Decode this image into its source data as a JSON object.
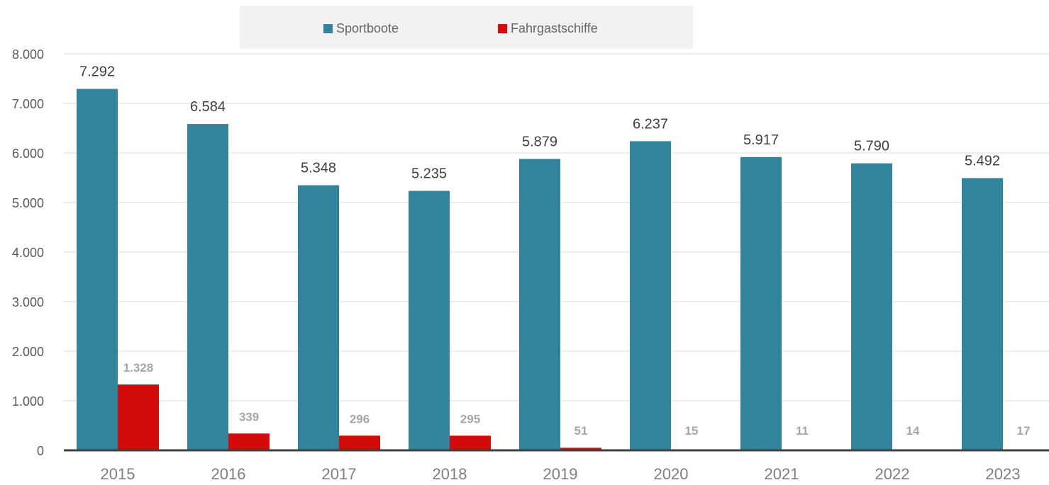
{
  "chart_data": {
    "type": "bar",
    "categories": [
      "2015",
      "2016",
      "2017",
      "2018",
      "2019",
      "2020",
      "2021",
      "2022",
      "2023"
    ],
    "series": [
      {
        "name": "Sportboote",
        "color": "#31849b",
        "values": [
          7292,
          6584,
          5348,
          5235,
          5879,
          6237,
          5917,
          5790,
          5492
        ],
        "labels": [
          "7.292",
          "6.584",
          "5.348",
          "5.235",
          "5.879",
          "6.237",
          "5.917",
          "5.790",
          "5.492"
        ]
      },
      {
        "name": "Fahrgastschiffe",
        "color": "#d40b0b",
        "values": [
          1328,
          339,
          296,
          295,
          51,
          15,
          11,
          14,
          17
        ],
        "labels": [
          "1.328",
          "339",
          "296",
          "295",
          "51",
          "15",
          "11",
          "14",
          "17"
        ]
      }
    ],
    "ylim": [
      0,
      8000
    ],
    "yticks": [
      0,
      1000,
      2000,
      3000,
      4000,
      5000,
      6000,
      7000,
      8000
    ],
    "ytick_labels": [
      "0",
      "1.000",
      "2.000",
      "3.000",
      "4.000",
      "5.000",
      "6.000",
      "7.000",
      "8.000"
    ],
    "grid": true,
    "legend_position": "top-center",
    "title": "",
    "xlabel": "",
    "ylabel": ""
  }
}
